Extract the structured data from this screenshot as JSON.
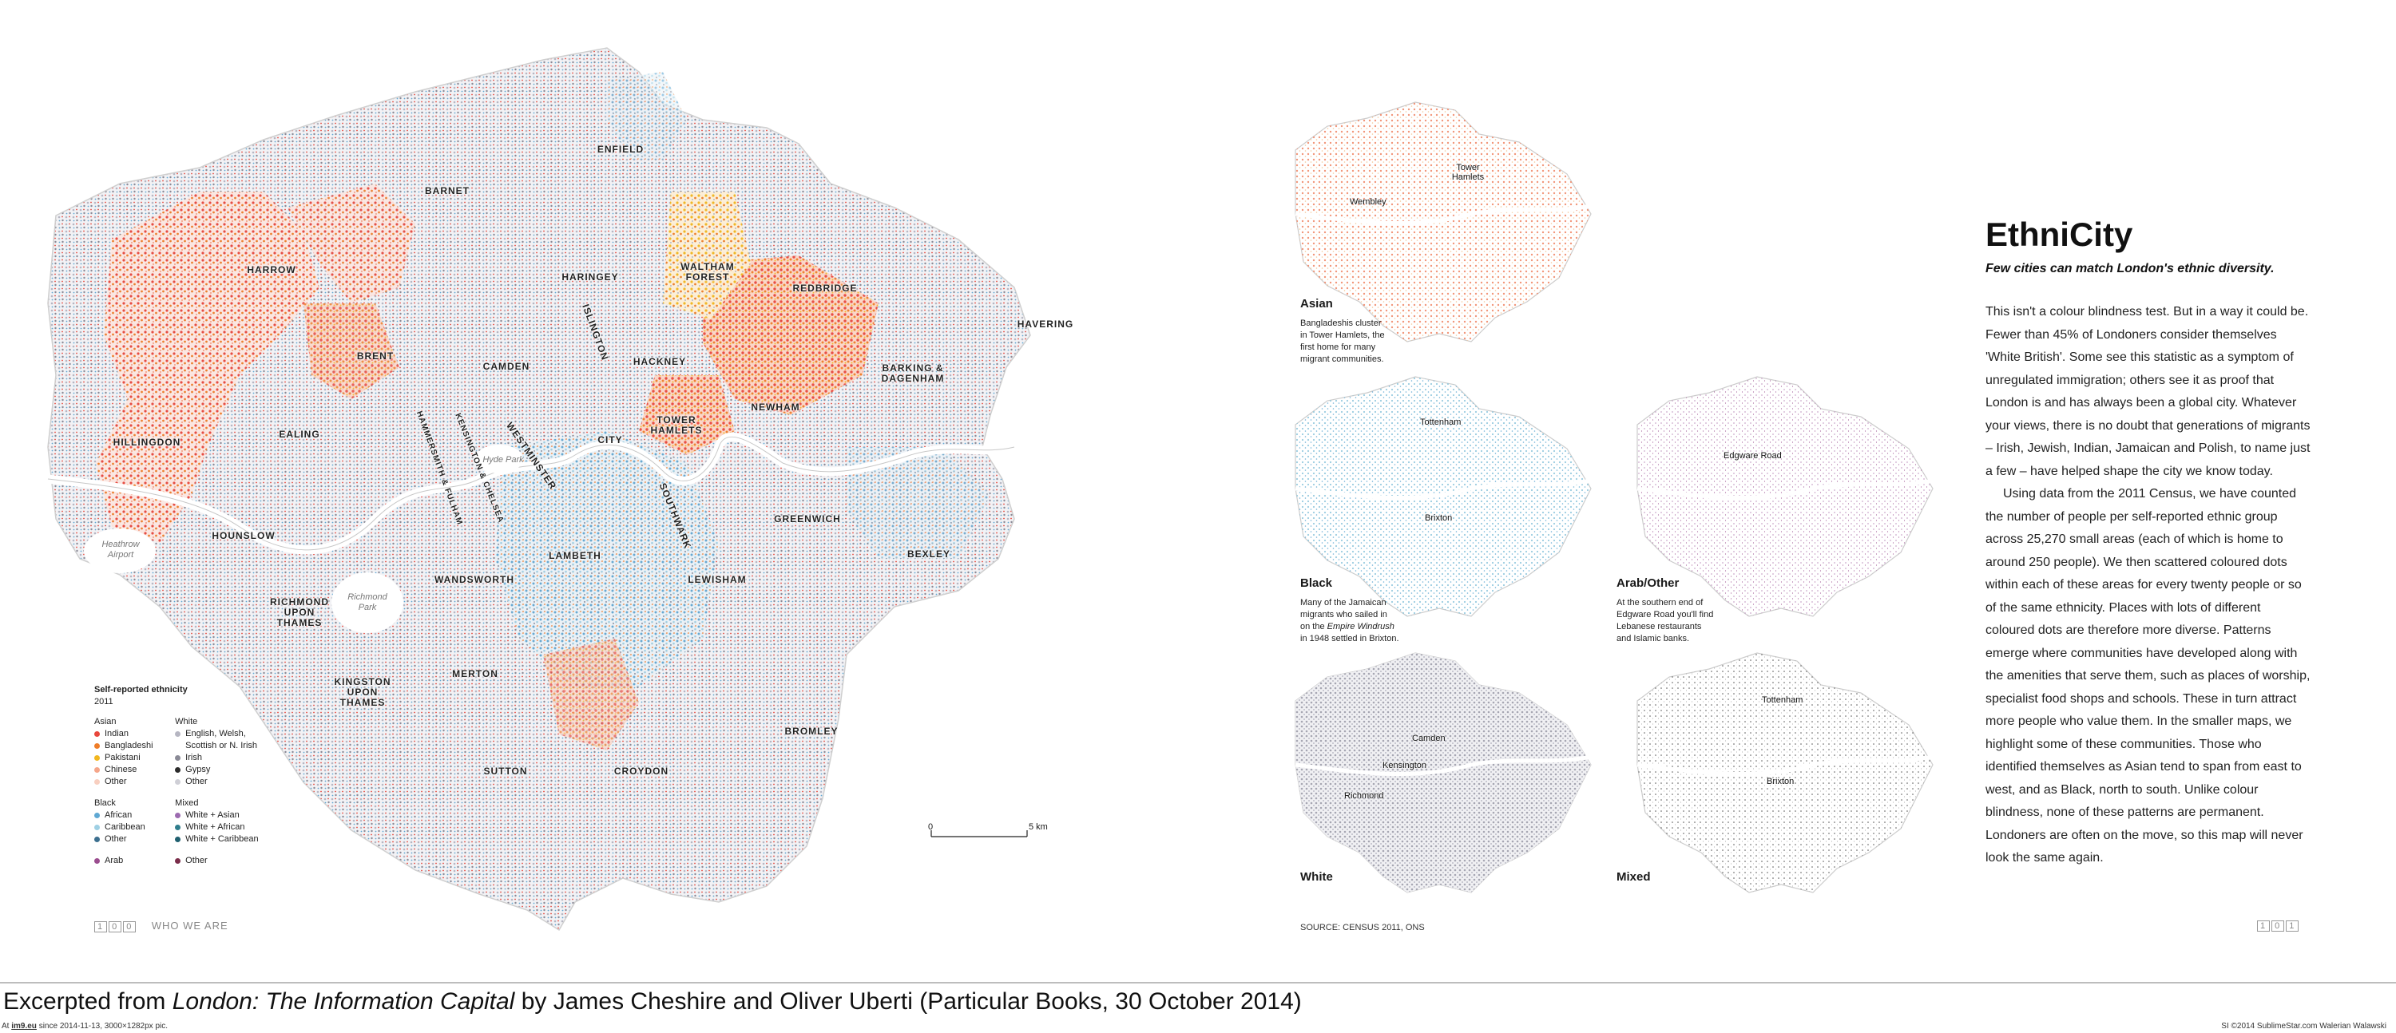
{
  "main_map": {
    "areas": [
      "ENFIELD",
      "BARNET",
      "HARROW",
      "HARINGEY",
      "WALTHAM FOREST",
      "REDBRIDGE",
      "HAVERING",
      "BRENT",
      "CAMDEN",
      "ISLINGTON",
      "HACKNEY",
      "BARKING & DAGENHAM",
      "HILLINGDON",
      "EALING",
      "CITY",
      "TOWER HAMLETS",
      "NEWHAM",
      "HAMMERSMITH & FULHAM",
      "KENSINGTON & CHELSEA",
      "WESTMINSTER",
      "SOUTHWARK",
      "GREENWICH",
      "HOUNSLOW",
      "WANDSWORTH",
      "LAMBETH",
      "LEWISHAM",
      "BEXLEY",
      "RICHMOND UPON THAMES",
      "KINGSTON UPON THAMES",
      "MERTON",
      "BROMLEY",
      "SUTTON",
      "CROYDON"
    ],
    "places": {
      "hyde_park": "Hyde Park",
      "heathrow": "Heathrow Airport",
      "richmond_park": "Richmond Park"
    },
    "scale_bar": {
      "start": "0",
      "end": "5 km"
    },
    "legend": {
      "title": "Self-reported ethnicity",
      "year": "2011",
      "asian": {
        "heading": "Asian",
        "items": [
          {
            "label": "Indian",
            "color": "#e8473c"
          },
          {
            "label": "Bangladeshi",
            "color": "#ef7d28"
          },
          {
            "label": "Pakistani",
            "color": "#f2b71f"
          },
          {
            "label": "Chinese",
            "color": "#f5a68a"
          },
          {
            "label": "Other",
            "color": "#f8cfc0"
          }
        ]
      },
      "white": {
        "heading": "White",
        "items": [
          {
            "label": "English, Welsh,",
            "color": "#b6b6c2"
          },
          {
            "label": "Scottish or N. Irish",
            "color": ""
          },
          {
            "label": "Irish",
            "color": "#8a8a96"
          },
          {
            "label": "Gypsy",
            "color": "#2b2b2b"
          },
          {
            "label": "Other",
            "color": "#cfcfd6"
          }
        ]
      },
      "black": {
        "heading": "Black",
        "items": [
          {
            "label": "African",
            "color": "#5fa8d3"
          },
          {
            "label": "Caribbean",
            "color": "#9fd0e4"
          },
          {
            "label": "Other",
            "color": "#3c6f8f"
          }
        ]
      },
      "mixed": {
        "heading": "Mixed",
        "items": [
          {
            "label": "White + Asian",
            "color": "#9c6bb0"
          },
          {
            "label": "White + African",
            "color": "#2f7d8c"
          },
          {
            "label": "White + Caribbean",
            "color": "#1f5f6f"
          }
        ]
      },
      "arab": {
        "label": "Arab",
        "color": "#9b4d8f"
      },
      "other": {
        "label": "Other",
        "color": "#7a2d4a"
      }
    },
    "page_number": [
      "1",
      "0",
      "0"
    ],
    "section": "WHO WE ARE"
  },
  "small_maps": {
    "asian": {
      "title": "Asian",
      "caption": [
        "Bangladeshis cluster",
        "in Tower Hamlets, the",
        "first home for many",
        "migrant communities."
      ],
      "pins": [
        "Tower Hamlets",
        "Wembley"
      ],
      "color": "#ef5a3c"
    },
    "black": {
      "title": "Black",
      "caption_a": "Many of the Jamaican",
      "caption_b": "migrants who sailed in",
      "caption_c_pre": "on the ",
      "caption_c_em": "Empire Windrush",
      "caption_d": "in 1948 settled in Brixton.",
      "pins": [
        "Tottenham",
        "Brixton"
      ],
      "color": "#6ab3d1"
    },
    "arab": {
      "title": "Arab/Other",
      "caption": [
        "At the southern end of",
        "Edgware Road you'll find",
        "Lebanese restaurants",
        "and Islamic banks."
      ],
      "pins": [
        "Edgware Road"
      ],
      "color": "#9b4d8f"
    },
    "white": {
      "title": "White",
      "pins": [
        "Camden",
        "Kensington",
        "Richmond"
      ],
      "color": "#9a9aa6"
    },
    "mixed": {
      "title": "Mixed",
      "pins": [
        "Tottenham",
        "Brixton"
      ],
      "color": "#333333"
    },
    "source": "SOURCE: CENSUS 2011, ONS",
    "page_number": [
      "1",
      "0",
      "1"
    ]
  },
  "article": {
    "title": "EthniCity",
    "subtitle": "Few cities can match London's ethnic diversity.",
    "paragraph1": "This isn't a colour blindness test. But in a way it could be. Fewer than 45% of Londoners consider themselves 'White British'. Some see this statistic as a symptom of unregulated immigration; others see it as proof that London is and has always been a global city. Whatever your views, there is no doubt that generations of migrants – Irish, Jewish, Indian, Jamaican and Polish, to name just a few – have helped shape the city we know today.",
    "paragraph2": "Using data from the 2011 Census, we have counted the number of people per self-reported ethnic group across 25,270 small areas (each of which is home to around 250 people). We then scattered coloured dots within each of these areas for every twenty people or so of the same ethnicity. Places with lots of different coloured dots are therefore more diverse. Patterns emerge where communities have developed along with the amenities that serve them, such as places of worship, specialist food shops and schools. These in turn attract more people who value them. In the smaller maps, we highlight some of these communities. Those who identified themselves as Asian tend to span from east to west, and as Black, north to south. Unlike colour blindness, none of these patterns are permanent. Londoners are often on the move, so this map will never look the same again."
  },
  "excerpt": {
    "pre": "Excerpted from ",
    "book": "London: The Information Capital",
    "post": " by James Cheshire and Oliver Uberti (Particular Books, 30 October 2014)"
  },
  "footer": {
    "left_pre": "At ",
    "left_link": "im9.eu",
    "left_post": " since 2014-11-13, 3000×1282px pic.",
    "right": "SI ©2014 SublimeStar.com Walerian Walawski"
  }
}
